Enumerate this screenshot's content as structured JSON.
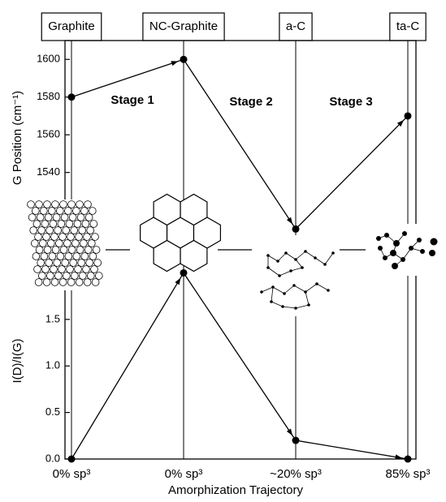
{
  "chart_data": [
    {
      "type": "line",
      "y_label": "G Position (cm⁻¹)",
      "categories": [
        "Graphite",
        "NC-Graphite",
        "a-C",
        "ta-C"
      ],
      "values": [
        1580,
        1600,
        1510,
        1570
      ],
      "color": "#000000",
      "ylim": [
        1505,
        1610
      ],
      "yticks": [
        1520,
        1540,
        1560,
        1580,
        1600
      ],
      "annotations": [
        "Stage 1",
        "Stage 2",
        "Stage 3"
      ]
    },
    {
      "type": "line",
      "x_label": "Amorphization Trajectory",
      "y_label": "I(D)/I(G)",
      "categories": [
        "0% sp³",
        "0% sp³",
        "~20% sp³",
        "85% sp³"
      ],
      "values": [
        0,
        2,
        0.2,
        0
      ],
      "color": "#000000",
      "ylim": [
        0,
        2.1
      ],
      "yticks": [
        {
          "value": 0,
          "label": "0.0"
        },
        0.5,
        {
          "value": 1,
          "label": "1.0"
        },
        1.5
      ]
    }
  ]
}
